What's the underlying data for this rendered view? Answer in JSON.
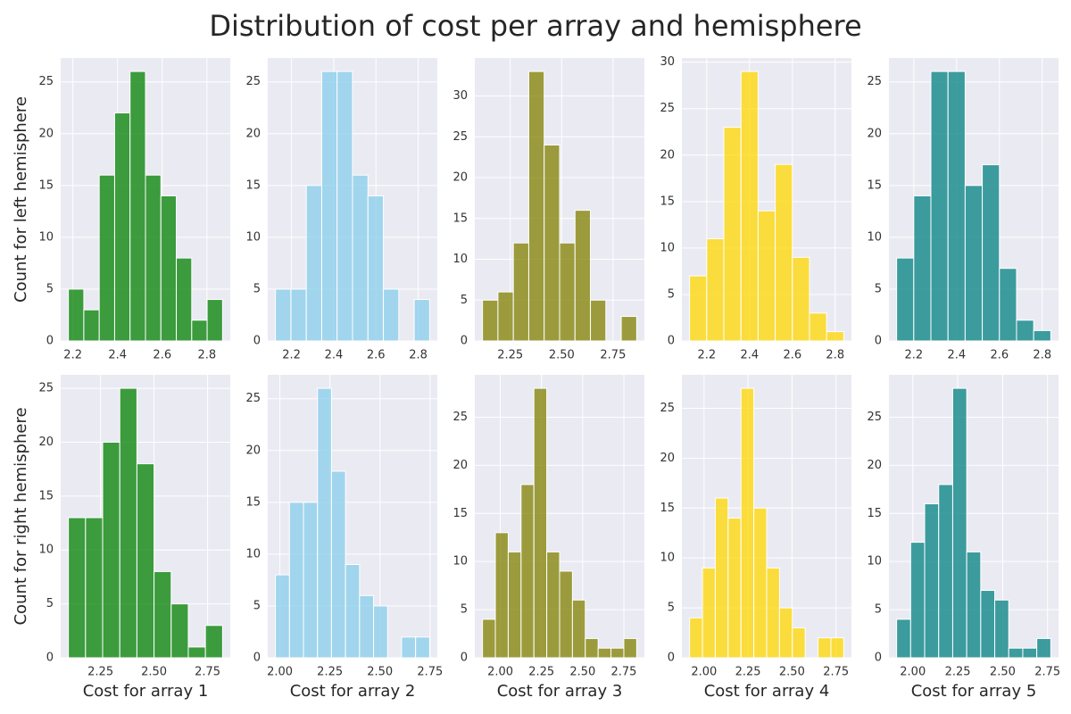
{
  "title": "Distribution of cost per array and hemisphere",
  "chart_data": [
    {
      "type": "histogram",
      "ylabel": "Count for left hemisphere",
      "color": "green",
      "grid": true,
      "bins": [
        2.18,
        2.249,
        2.318,
        2.387,
        2.456,
        2.525,
        2.594,
        2.663,
        2.732,
        2.801,
        2.87
      ],
      "values": [
        5,
        3,
        16,
        22,
        26,
        16,
        14,
        8,
        2,
        4
      ],
      "xlim": [
        2.1455,
        2.9045
      ],
      "xticks": [
        2.2,
        2.4,
        2.6,
        2.8
      ],
      "ylim": [
        0,
        27.3
      ],
      "yticks": [
        0,
        5,
        10,
        15,
        20,
        25
      ]
    },
    {
      "type": "histogram",
      "color": "skyblue",
      "grid": true,
      "bins": [
        2.124,
        2.197,
        2.27,
        2.343,
        2.416,
        2.489,
        2.562,
        2.635,
        2.708,
        2.781,
        2.854
      ],
      "values": [
        5,
        5,
        15,
        26,
        26,
        16,
        14,
        5,
        0,
        4
      ],
      "xlim": [
        2.0875,
        2.8905
      ],
      "xticks": [
        2.2,
        2.4,
        2.6,
        2.8
      ],
      "ylim": [
        0,
        27.3
      ],
      "yticks": [
        0,
        5,
        10,
        15,
        20,
        25
      ]
    },
    {
      "type": "histogram",
      "color": "olive",
      "grid": true,
      "bins": [
        2.115,
        2.19,
        2.265,
        2.34,
        2.415,
        2.49,
        2.565,
        2.64,
        2.715,
        2.79,
        2.865
      ],
      "values": [
        5,
        6,
        12,
        33,
        24,
        12,
        16,
        5,
        0,
        3
      ],
      "xlim": [
        2.0775,
        2.9025
      ],
      "xticks": [
        2.25,
        {
          "value": 2.5,
          "label": "2.50"
        },
        2.75
      ],
      "ylim": [
        0,
        34.65
      ],
      "yticks": [
        0,
        5,
        10,
        15,
        20,
        25,
        30
      ]
    },
    {
      "type": "histogram",
      "color": "gold",
      "grid": true,
      "bins": [
        2.12,
        2.2,
        2.28,
        2.36,
        2.44,
        2.52,
        2.6,
        2.68,
        2.76,
        2.84
      ],
      "values": [
        7,
        11,
        23,
        29,
        14,
        19,
        9,
        3,
        1
      ],
      "xlim": [
        2.084,
        2.876
      ],
      "xticks": [
        2.2,
        2.4,
        2.6,
        2.8
      ],
      "ylim": [
        0,
        30.45
      ],
      "yticks": [
        0,
        5,
        10,
        15,
        20,
        25,
        30
      ]
    },
    {
      "type": "histogram",
      "color": "teal",
      "grid": true,
      "bins": [
        2.12,
        2.2,
        2.28,
        2.36,
        2.44,
        2.52,
        2.6,
        2.68,
        2.76,
        2.84
      ],
      "values": [
        8,
        14,
        26,
        26,
        15,
        17,
        7,
        2,
        1
      ],
      "xlim": [
        2.084,
        2.876
      ],
      "xticks": [
        2.2,
        2.4,
        2.6,
        2.8
      ],
      "ylim": [
        0,
        27.3
      ],
      "yticks": [
        0,
        5,
        10,
        15,
        20,
        25
      ]
    },
    {
      "type": "histogram",
      "ylabel": "Count for right hemisphere",
      "xlabel": "Cost for array 1",
      "color": "green",
      "grid": true,
      "bins": [
        2.1,
        2.18,
        2.26,
        2.34,
        2.42,
        2.5,
        2.58,
        2.66,
        2.74,
        2.82
      ],
      "values": [
        13,
        13,
        20,
        25,
        18,
        8,
        5,
        1,
        3
      ],
      "xlim": [
        2.064,
        2.856
      ],
      "xticks": [
        2.25,
        {
          "value": 2.5,
          "label": "2.50"
        },
        2.75
      ],
      "ylim": [
        0,
        26.25
      ],
      "yticks": [
        0,
        5,
        10,
        15,
        20,
        25
      ]
    },
    {
      "type": "histogram",
      "xlabel": "Cost for array 2",
      "color": "skyblue",
      "grid": true,
      "bins": [
        1.978,
        2.048,
        2.118,
        2.188,
        2.258,
        2.328,
        2.398,
        2.468,
        2.538,
        2.608,
        2.678,
        2.748
      ],
      "values": [
        8,
        15,
        15,
        26,
        18,
        9,
        6,
        5,
        0,
        2,
        2
      ],
      "xlim": [
        1.9395,
        2.7865
      ],
      "xticks": [
        {
          "value": 2,
          "label": "2.00"
        },
        2.25,
        {
          "value": 2.5,
          "label": "2.50"
        },
        2.75
      ],
      "ylim": [
        0,
        27.3
      ],
      "yticks": [
        0,
        5,
        10,
        15,
        20,
        25
      ]
    },
    {
      "type": "histogram",
      "xlabel": "Cost for array 3",
      "color": "olive",
      "grid": true,
      "bins": [
        1.892,
        1.97,
        2.048,
        2.126,
        2.204,
        2.282,
        2.36,
        2.438,
        2.516,
        2.594,
        2.672,
        2.75,
        2.828
      ],
      "values": [
        4,
        13,
        11,
        18,
        28,
        11,
        9,
        6,
        2,
        1,
        1,
        2
      ],
      "xlim": [
        1.8452,
        2.8748
      ],
      "xticks": [
        {
          "value": 2,
          "label": "2.00"
        },
        2.25,
        {
          "value": 2.5,
          "label": "2.50"
        },
        2.75
      ],
      "ylim": [
        0,
        29.4
      ],
      "yticks": [
        0,
        5,
        10,
        15,
        20,
        25
      ]
    },
    {
      "type": "histogram",
      "xlabel": "Cost for array 4",
      "color": "gold",
      "grid": true,
      "bins": [
        1.918,
        1.991,
        2.064,
        2.137,
        2.21,
        2.283,
        2.356,
        2.429,
        2.502,
        2.575,
        2.648,
        2.721,
        2.794
      ],
      "values": [
        4,
        9,
        16,
        14,
        27,
        15,
        9,
        5,
        3,
        0,
        2,
        2
      ],
      "xlim": [
        1.8742,
        2.8378
      ],
      "xticks": [
        {
          "value": 2,
          "label": "2.00"
        },
        2.25,
        {
          "value": 2.5,
          "label": "2.50"
        },
        2.75
      ],
      "ylim": [
        0,
        28.35
      ],
      "yticks": [
        0,
        5,
        10,
        15,
        20,
        25
      ]
    },
    {
      "type": "histogram",
      "xlabel": "Cost for array 5",
      "color": "teal",
      "grid": true,
      "bins": [
        1.91,
        1.988,
        2.066,
        2.144,
        2.222,
        2.3,
        2.378,
        2.456,
        2.534,
        2.612,
        2.69,
        2.768
      ],
      "values": [
        4,
        12,
        16,
        18,
        28,
        11,
        7,
        6,
        1,
        1,
        2
      ],
      "xlim": [
        1.8671,
        2.8109
      ],
      "xticks": [
        {
          "value": 2,
          "label": "2.00"
        },
        2.25,
        {
          "value": 2.5,
          "label": "2.50"
        },
        2.75
      ],
      "ylim": [
        0,
        29.4
      ],
      "yticks": [
        0,
        5,
        10,
        15,
        20,
        25
      ]
    }
  ]
}
